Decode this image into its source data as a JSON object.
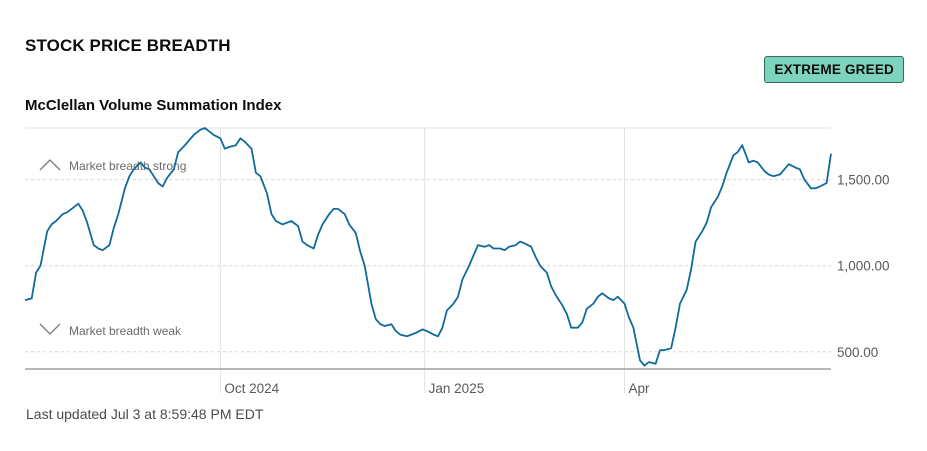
{
  "header": {
    "title": "STOCK PRICE BREADTH",
    "badge": "EXTREME GREED",
    "subtitle": "McClellan Volume Summation Index",
    "last_updated": "Last updated Jul 3 at 8:59:48 PM EDT"
  },
  "annotations": {
    "strong": "Market breadth strong",
    "weak": "Market breadth weak"
  },
  "colors": {
    "line": "#106a9a",
    "badge_bg": "#7dd3bd",
    "grid": "#e2e2e2",
    "axis": "#a0a0a0"
  },
  "chart_data": {
    "type": "line",
    "title": "McClellan Volume Summation Index",
    "xlabel": "",
    "ylabel": "",
    "x_ticks": [
      "Oct 2024",
      "Jan 2025",
      "Apr"
    ],
    "y_ticks": [
      "500.00",
      "1,000.00",
      "1,500.00"
    ],
    "y_tick_values": [
      500,
      1000,
      1500
    ],
    "ylim": [
      400,
      1800
    ],
    "xlim": [
      "2024-07-05",
      "2025-07-03"
    ],
    "x_tick_dates": [
      "2024-10-01",
      "2025-01-01",
      "2025-04-01"
    ],
    "grid": true,
    "series": [
      {
        "name": "",
        "points": [
          [
            "2024-07-05",
            800
          ],
          [
            "2024-07-08",
            810
          ],
          [
            "2024-07-10",
            960
          ],
          [
            "2024-07-12",
            1000
          ],
          [
            "2024-07-15",
            1200
          ],
          [
            "2024-07-17",
            1240
          ],
          [
            "2024-07-19",
            1260
          ],
          [
            "2024-07-22",
            1300
          ],
          [
            "2024-07-24",
            1310
          ],
          [
            "2024-07-26",
            1330
          ],
          [
            "2024-07-29",
            1360
          ],
          [
            "2024-07-31",
            1320
          ],
          [
            "2024-08-02",
            1250
          ],
          [
            "2024-08-05",
            1120
          ],
          [
            "2024-08-07",
            1100
          ],
          [
            "2024-08-09",
            1090
          ],
          [
            "2024-08-12",
            1120
          ],
          [
            "2024-08-14",
            1220
          ],
          [
            "2024-08-16",
            1300
          ],
          [
            "2024-08-19",
            1450
          ],
          [
            "2024-08-21",
            1520
          ],
          [
            "2024-08-23",
            1560
          ],
          [
            "2024-08-26",
            1600
          ],
          [
            "2024-08-28",
            1570
          ],
          [
            "2024-08-30",
            1560
          ],
          [
            "2024-09-03",
            1480
          ],
          [
            "2024-09-05",
            1460
          ],
          [
            "2024-09-07",
            1510
          ],
          [
            "2024-09-10",
            1560
          ],
          [
            "2024-09-12",
            1660
          ],
          [
            "2024-09-15",
            1700
          ],
          [
            "2024-09-17",
            1730
          ],
          [
            "2024-09-19",
            1760
          ],
          [
            "2024-09-22",
            1790
          ],
          [
            "2024-09-24",
            1800
          ],
          [
            "2024-09-26",
            1780
          ],
          [
            "2024-09-28",
            1760
          ],
          [
            "2024-10-01",
            1740
          ],
          [
            "2024-10-03",
            1680
          ],
          [
            "2024-10-05",
            1690
          ],
          [
            "2024-10-08",
            1700
          ],
          [
            "2024-10-10",
            1740
          ],
          [
            "2024-10-12",
            1720
          ],
          [
            "2024-10-15",
            1680
          ],
          [
            "2024-10-17",
            1540
          ],
          [
            "2024-10-19",
            1520
          ],
          [
            "2024-10-22",
            1420
          ],
          [
            "2024-10-24",
            1300
          ],
          [
            "2024-10-26",
            1260
          ],
          [
            "2024-10-29",
            1240
          ],
          [
            "2024-10-31",
            1250
          ],
          [
            "2024-11-02",
            1260
          ],
          [
            "2024-11-05",
            1230
          ],
          [
            "2024-11-07",
            1140
          ],
          [
            "2024-11-09",
            1120
          ],
          [
            "2024-11-12",
            1100
          ],
          [
            "2024-11-14",
            1180
          ],
          [
            "2024-11-16",
            1240
          ],
          [
            "2024-11-19",
            1300
          ],
          [
            "2024-11-21",
            1330
          ],
          [
            "2024-11-23",
            1330
          ],
          [
            "2024-11-26",
            1300
          ],
          [
            "2024-11-28",
            1240
          ],
          [
            "2024-12-01",
            1190
          ],
          [
            "2024-12-03",
            1080
          ],
          [
            "2024-12-05",
            1000
          ],
          [
            "2024-12-08",
            780
          ],
          [
            "2024-12-10",
            690
          ],
          [
            "2024-12-12",
            660
          ],
          [
            "2024-12-14",
            650
          ],
          [
            "2024-12-17",
            660
          ],
          [
            "2024-12-19",
            620
          ],
          [
            "2024-12-21",
            600
          ],
          [
            "2024-12-24",
            590
          ],
          [
            "2024-12-26",
            600
          ],
          [
            "2024-12-28",
            610
          ],
          [
            "2024-12-31",
            630
          ],
          [
            "2025-01-02",
            620
          ],
          [
            "2025-01-05",
            600
          ],
          [
            "2025-01-07",
            590
          ],
          [
            "2025-01-09",
            640
          ],
          [
            "2025-01-11",
            740
          ],
          [
            "2025-01-14",
            780
          ],
          [
            "2025-01-16",
            820
          ],
          [
            "2025-01-18",
            920
          ],
          [
            "2025-01-21",
            1000
          ],
          [
            "2025-01-23",
            1060
          ],
          [
            "2025-01-25",
            1120
          ],
          [
            "2025-01-28",
            1110
          ],
          [
            "2025-01-30",
            1120
          ],
          [
            "2025-02-01",
            1100
          ],
          [
            "2025-02-04",
            1100
          ],
          [
            "2025-02-06",
            1090
          ],
          [
            "2025-02-08",
            1110
          ],
          [
            "2025-02-11",
            1120
          ],
          [
            "2025-02-13",
            1140
          ],
          [
            "2025-02-15",
            1130
          ],
          [
            "2025-02-18",
            1110
          ],
          [
            "2025-02-20",
            1050
          ],
          [
            "2025-02-22",
            1000
          ],
          [
            "2025-02-25",
            960
          ],
          [
            "2025-02-27",
            880
          ],
          [
            "2025-03-01",
            830
          ],
          [
            "2025-03-04",
            770
          ],
          [
            "2025-03-06",
            720
          ],
          [
            "2025-03-08",
            640
          ],
          [
            "2025-03-11",
            640
          ],
          [
            "2025-03-13",
            670
          ],
          [
            "2025-03-15",
            750
          ],
          [
            "2025-03-18",
            780
          ],
          [
            "2025-03-20",
            820
          ],
          [
            "2025-03-22",
            840
          ],
          [
            "2025-03-25",
            810
          ],
          [
            "2025-03-27",
            800
          ],
          [
            "2025-03-29",
            820
          ],
          [
            "2025-04-01",
            780
          ],
          [
            "2025-04-03",
            700
          ],
          [
            "2025-04-05",
            640
          ],
          [
            "2025-04-08",
            450
          ],
          [
            "2025-04-10",
            420
          ],
          [
            "2025-04-12",
            440
          ],
          [
            "2025-04-15",
            430
          ],
          [
            "2025-04-17",
            510
          ],
          [
            "2025-04-19",
            510
          ],
          [
            "2025-04-22",
            520
          ],
          [
            "2025-04-24",
            640
          ],
          [
            "2025-04-26",
            780
          ],
          [
            "2025-04-29",
            860
          ],
          [
            "2025-05-01",
            980
          ],
          [
            "2025-05-03",
            1140
          ],
          [
            "2025-05-06",
            1200
          ],
          [
            "2025-05-08",
            1250
          ],
          [
            "2025-05-10",
            1340
          ],
          [
            "2025-05-13",
            1400
          ],
          [
            "2025-05-15",
            1460
          ],
          [
            "2025-05-17",
            1540
          ],
          [
            "2025-05-20",
            1640
          ],
          [
            "2025-05-22",
            1660
          ],
          [
            "2025-05-24",
            1700
          ],
          [
            "2025-05-27",
            1600
          ],
          [
            "2025-05-29",
            1610
          ],
          [
            "2025-05-31",
            1600
          ],
          [
            "2025-06-03",
            1550
          ],
          [
            "2025-06-05",
            1530
          ],
          [
            "2025-06-07",
            1520
          ],
          [
            "2025-06-10",
            1530
          ],
          [
            "2025-06-12",
            1560
          ],
          [
            "2025-06-14",
            1590
          ],
          [
            "2025-06-17",
            1570
          ],
          [
            "2025-06-19",
            1560
          ],
          [
            "2025-06-21",
            1500
          ],
          [
            "2025-06-24",
            1450
          ],
          [
            "2025-06-26",
            1450
          ],
          [
            "2025-06-28",
            1460
          ],
          [
            "2025-07-01",
            1480
          ],
          [
            "2025-07-03",
            1650
          ]
        ]
      }
    ]
  }
}
